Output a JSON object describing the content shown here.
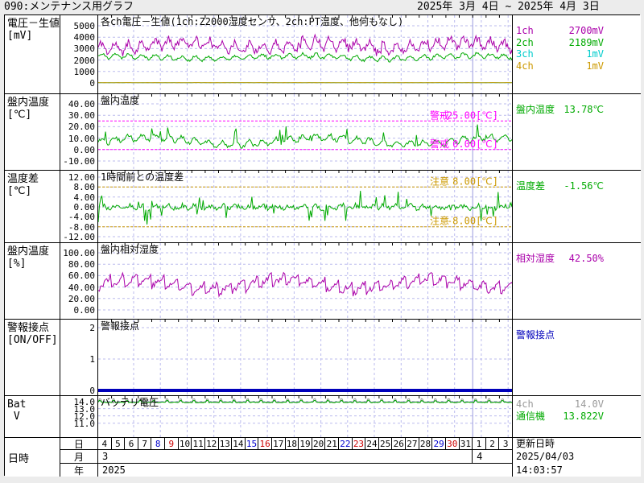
{
  "header": {
    "title": "090:メンテナンス用グラフ",
    "date_range": "2025年 3月 4日 ~ 2025年 4月 3日"
  },
  "update": {
    "label": "更新日時",
    "date": "2025/04/03",
    "time": "14:03:57"
  },
  "date_axis": {
    "row_label": "日時",
    "day_header": "日",
    "month_header": "月",
    "year_header": "年",
    "year": "2025",
    "months": [
      {
        "label": "3",
        "span_days": 28
      },
      {
        "label": "4",
        "span_days": 3
      }
    ],
    "days": [
      {
        "d": "4"
      },
      {
        "d": "5"
      },
      {
        "d": "6"
      },
      {
        "d": "7"
      },
      {
        "d": "8",
        "c": "sat"
      },
      {
        "d": "9",
        "c": "sun"
      },
      {
        "d": "10"
      },
      {
        "d": "11"
      },
      {
        "d": "12"
      },
      {
        "d": "13"
      },
      {
        "d": "14"
      },
      {
        "d": "15",
        "c": "sat"
      },
      {
        "d": "16",
        "c": "sun"
      },
      {
        "d": "17"
      },
      {
        "d": "18"
      },
      {
        "d": "19"
      },
      {
        "d": "20"
      },
      {
        "d": "21"
      },
      {
        "d": "22",
        "c": "sat"
      },
      {
        "d": "23",
        "c": "sun"
      },
      {
        "d": "24"
      },
      {
        "d": "25"
      },
      {
        "d": "26"
      },
      {
        "d": "27"
      },
      {
        "d": "28"
      },
      {
        "d": "29",
        "c": "sat"
      },
      {
        "d": "30",
        "c": "sun"
      },
      {
        "d": "31"
      },
      {
        "d": "1"
      },
      {
        "d": "2"
      },
      {
        "d": "3"
      }
    ],
    "weekend_colors": {
      "sat": "#0000cc",
      "sun": "#cc0000"
    }
  },
  "colors": {
    "grid": "#bbbbee",
    "month_line": "#9999dd",
    "warning": "#ff00ff",
    "caution": "#cc9900",
    "alarm_line": "#0000bb"
  },
  "chart_data": [
    {
      "id": "voltage-raw",
      "type": "line",
      "row_label": "電圧－生値",
      "row_unit": "[mV]",
      "chart_title": "各ch電圧－生値(1ch:Z2000湿度センサ、2ch:PT温度、他何もなし)",
      "ylim": [
        0,
        5000
      ],
      "ticks": [
        "5000",
        "4000",
        "3000",
        "2000",
        "1000",
        "0"
      ],
      "x_range_label": "2025/03/04 - 2025/04/03",
      "series": [
        {
          "name": "1ch",
          "color": "#aa00aa",
          "current": "2700mV",
          "gen": {
            "seed": 11,
            "n": 372,
            "base": 3300,
            "noise": 320,
            "driftAmp": 260,
            "driftCycles": 3,
            "dailyAmp": 420,
            "spikeProb": 0.05,
            "spikeAmp": 500,
            "spikeSign": 0,
            "clamp": [
              2350,
              4700
            ]
          }
        },
        {
          "name": "2ch",
          "color": "#00aa00",
          "current": "2189mV",
          "gen": {
            "seed": 22,
            "n": 372,
            "base": 2250,
            "noise": 120,
            "driftAmp": 130,
            "driftCycles": 2.3,
            "dailyAmp": 190,
            "clamp": [
              1800,
              2750
            ]
          }
        },
        {
          "name": "3ch",
          "color": "#00cccc",
          "current": "1mV",
          "gen": {
            "seed": 33,
            "n": 186,
            "base": 22,
            "noise": 6,
            "clamp": [
              5,
              60
            ]
          }
        },
        {
          "name": "4ch",
          "color": "#cc9900",
          "current": "1mV",
          "gen": {
            "seed": 44,
            "n": 186,
            "base": 22,
            "noise": 8,
            "clamp": [
              5,
              70
            ]
          }
        }
      ],
      "right_panel": {
        "rows": [
          {
            "label": "1ch",
            "value": "2700mV",
            "color": "#aa00aa"
          },
          {
            "label": "2ch",
            "value": "2189mV",
            "color": "#00aa00"
          },
          {
            "label": "3ch",
            "value": "1mV",
            "color": "#00cccc"
          },
          {
            "label": "4ch",
            "value": "1mV",
            "color": "#cc9900"
          }
        ]
      }
    },
    {
      "id": "panel-temperature",
      "type": "line",
      "row_label": "盤内温度",
      "row_unit": "[℃]",
      "chart_title": "盤内温度",
      "ylim": [
        -10,
        40
      ],
      "ticks": [
        "40.00",
        "30.00",
        "20.00",
        "10.00",
        "0.00",
        "-10.00"
      ],
      "thresholds": [
        {
          "name": "警戒",
          "value": 25,
          "label": "25.00[℃]",
          "color": "#ff00ff"
        },
        {
          "name": "警戒",
          "value": 0,
          "label": "0.00[℃]",
          "color": "#ff00ff"
        }
      ],
      "series": [
        {
          "name": "盤内温度",
          "color": "#00aa00",
          "current": "13.78℃",
          "gen": {
            "seed": 55,
            "n": 341,
            "base": 7.5,
            "noise": 1.6,
            "driftAmp": 3,
            "driftCycles": 2.4,
            "dailyAmp": 2.6,
            "spikeProb": 0.05,
            "spikeAmp": 12,
            "spikeSign": 1,
            "clamp": [
              0.3,
              25.5
            ]
          }
        }
      ],
      "right_panel": {
        "rows": [
          {
            "label": "盤内温度",
            "value": "13.78℃",
            "color": "#00aa00"
          }
        ]
      }
    },
    {
      "id": "temperature-diff",
      "type": "line",
      "row_label": "温度差",
      "row_unit": "[℃]",
      "chart_title": "1時間前との温度差",
      "ylim": [
        -12,
        12
      ],
      "ticks": [
        "12.00",
        "8.00",
        "4.00",
        "0.00",
        "-4.00",
        "-8.00",
        "-12.00"
      ],
      "thresholds": [
        {
          "name": "注意",
          "value": 8,
          "label": "8.00[℃]",
          "color": "#cc9900"
        },
        {
          "name": "注意",
          "value": -8,
          "label": "-8.00[℃]",
          "color": "#cc9900"
        }
      ],
      "series": [
        {
          "name": "温度差",
          "color": "#00aa00",
          "current": "-1.56℃",
          "gen": {
            "seed": 66,
            "n": 341,
            "base": 0,
            "noise": 1.0,
            "dailyAmp": 0.6,
            "spikeProb": 0.07,
            "spikeAmp": 6.5,
            "spikeSign": 0,
            "clamp": [
              -8.8,
              8.8
            ]
          }
        }
      ],
      "right_panel": {
        "rows": [
          {
            "label": "温度差",
            "value": "-1.56℃",
            "color": "#00aa00"
          }
        ]
      }
    },
    {
      "id": "relative-humidity",
      "type": "line",
      "row_label": "盤内温度",
      "row_unit": "[%]",
      "chart_title": "盤内相対湿度",
      "ylim": [
        0,
        100
      ],
      "ticks": [
        "100.00",
        "80.00",
        "60.00",
        "40.00",
        "20.00",
        "0.00"
      ],
      "series": [
        {
          "name": "相対湿度",
          "color": "#aa00aa",
          "current": "42.50%",
          "gen": {
            "seed": 77,
            "n": 341,
            "base": 46,
            "noise": 5,
            "driftAmp": 8,
            "driftCycles": 2.8,
            "sawAmp": 11,
            "clamp": [
              24,
              76
            ]
          }
        }
      ],
      "right_panel": {
        "rows": [
          {
            "label": "相対湿度",
            "value": "42.50%",
            "color": "#aa00aa"
          }
        ]
      }
    },
    {
      "id": "alarm-contact",
      "type": "line",
      "row_label": "警報接点",
      "row_unit": "[ON/OFF]",
      "chart_title": "警報接点",
      "ylim": [
        0,
        2
      ],
      "ticks": [
        "2",
        "1",
        "0"
      ],
      "series": [
        {
          "name": "警報接点",
          "color": "#0000bb",
          "current": "0",
          "width": 4,
          "gen": {
            "seed": 88,
            "n": 2,
            "base": 0,
            "noise": 0
          }
        }
      ],
      "right_panel": {
        "rows": [
          {
            "label": "警報接点",
            "value": "",
            "color": "#0000bb"
          }
        ]
      }
    },
    {
      "id": "battery-voltage",
      "type": "line",
      "row_label": "Bat",
      "row_unit": " V",
      "chart_title": "バッテリ電圧",
      "ylim": [
        9.2,
        14.5
      ],
      "ticks": [
        "14.0",
        "13.0",
        "12.0",
        "11.0"
      ],
      "series": [
        {
          "name": "4ch",
          "color": "#999999",
          "current": "14.0V",
          "gen": {
            "seed": 99,
            "n": 341,
            "base": 13.9,
            "noise": 0.04,
            "bumpPeriod": 11,
            "bumpWidth": 3,
            "bumpAmp": 0.5,
            "clamp": [
              13.2,
              14.45
            ]
          }
        },
        {
          "name": "通信機",
          "color": "#00aa00",
          "current": "13.822V",
          "gen": {
            "seed": 111,
            "n": 341,
            "base": 13.85,
            "noise": 0.05,
            "bumpPeriod": 11,
            "bumpWidth": 3,
            "bumpAmp": 0.3,
            "clamp": [
              13.2,
              14.3
            ]
          }
        }
      ],
      "right_panel": {
        "rows": [
          {
            "label": "4ch",
            "value": "14.0V",
            "color": "#999999"
          },
          {
            "label": "通信機",
            "value": "13.822V",
            "color": "#00aa00"
          }
        ]
      }
    }
  ]
}
